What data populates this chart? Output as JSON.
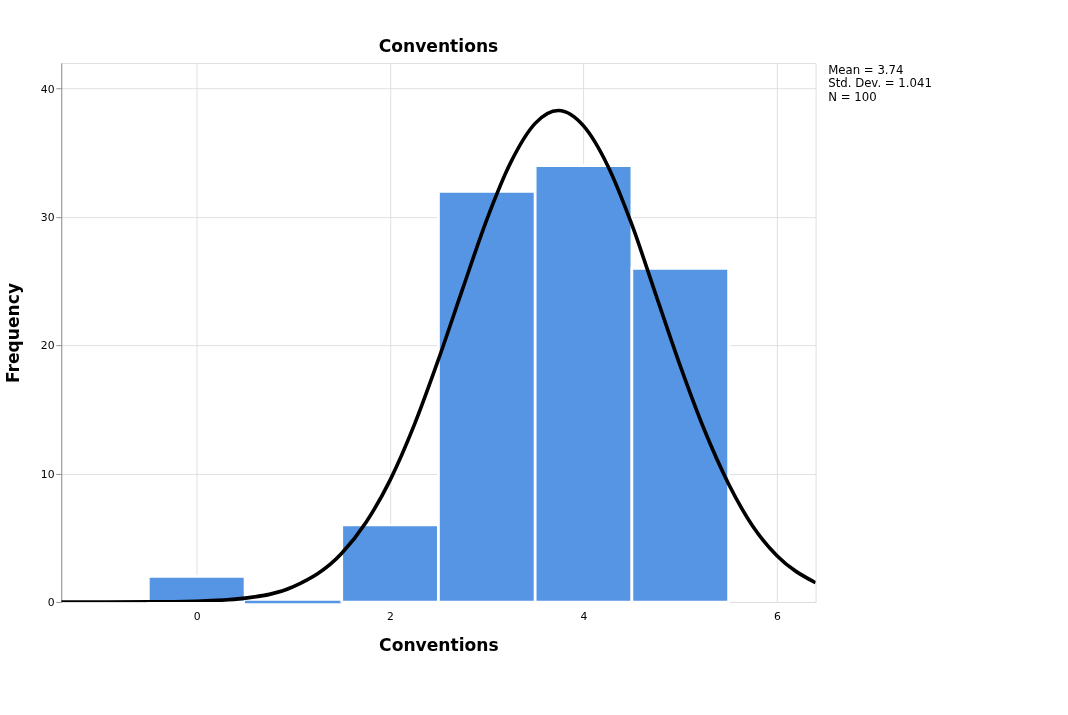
{
  "chart_data": {
    "type": "histogram",
    "title": "Conventions",
    "xlabel": "Conventions",
    "ylabel": "Frequency",
    "bins": [
      -0.5,
      0.5,
      1.5,
      2.5,
      3.5,
      4.5,
      5.5
    ],
    "values": [
      2,
      0,
      6,
      32,
      34,
      26
    ],
    "color": "#5595e3",
    "series": [
      {
        "type": "line",
        "color": "#000000",
        "x": [
          -1.4,
          -0.5,
          0,
          0.5,
          1,
          1.5,
          1.75,
          2,
          2.25,
          2.5,
          2.75,
          3,
          3.25,
          3.5,
          3.74,
          4,
          4.25,
          4.5,
          4.75,
          5,
          5.25,
          5.5,
          5.75,
          6,
          6.4
        ],
        "values": [
          0,
          0.01,
          0.06,
          0.3,
          1.2,
          3.8,
          6.2,
          9.5,
          13.8,
          18.9,
          24.4,
          29.8,
          34.3,
          37.3,
          38.3,
          37.1,
          34,
          29.4,
          23.9,
          18.4,
          13.4,
          9.2,
          5.9,
          3.6,
          1.5
        ]
      }
    ],
    "xlim": [
      -1.4,
      6.4
    ],
    "ylim": [
      0,
      42
    ],
    "xticks": [
      0,
      2,
      4,
      6
    ],
    "yticks": [
      0,
      10,
      20,
      30,
      40
    ],
    "grid": true,
    "annotations": [
      "Mean = 3.74",
      "Std. Dev. = 1.041",
      "N = 100"
    ]
  }
}
